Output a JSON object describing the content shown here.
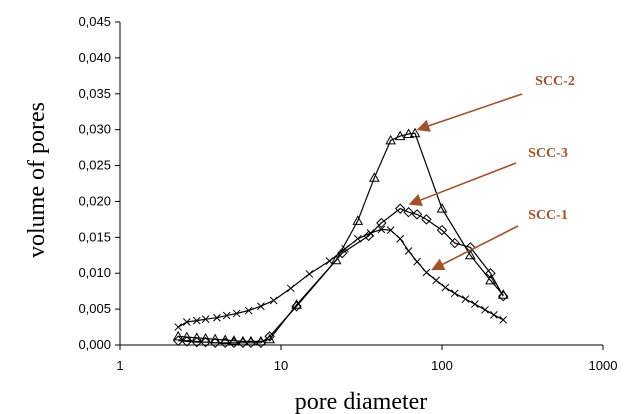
{
  "chart_data": {
    "type": "line",
    "title": "",
    "xlabel": "pore diameter",
    "ylabel": "volume of pores",
    "xscale": "log",
    "xlim": [
      1,
      1000
    ],
    "ylim": [
      0,
      0.045
    ],
    "grid": false,
    "x_tick_labels": [
      "1",
      "10",
      "100",
      "1000"
    ],
    "x_ticks": [
      1,
      10,
      100,
      1000
    ],
    "y_tick_labels": [
      "0,000",
      "0,005",
      "0,010",
      "0,015",
      "0,020",
      "0,025",
      "0,030",
      "0,035",
      "0,040",
      "0,045"
    ],
    "y_ticks": [
      0,
      0.005,
      0.01,
      0.015,
      0.02,
      0.025,
      0.03,
      0.035,
      0.04,
      0.045
    ],
    "series": [
      {
        "name": "SCC-1",
        "marker": "x",
        "x": [
          2.3,
          2.6,
          3.0,
          3.4,
          4.0,
          4.6,
          5.3,
          6.3,
          7.5,
          9.0,
          11.5,
          15,
          20,
          25,
          30,
          36,
          42,
          48,
          55,
          62,
          70,
          80,
          92,
          105,
          120,
          140,
          160,
          185,
          210,
          240
        ],
        "y": [
          0.0025,
          0.0032,
          0.0034,
          0.0036,
          0.0038,
          0.0041,
          0.0044,
          0.0048,
          0.0054,
          0.0062,
          0.0079,
          0.0099,
          0.0117,
          0.0134,
          0.0148,
          0.0156,
          0.0161,
          0.016,
          0.0148,
          0.0131,
          0.0116,
          0.0101,
          0.009,
          0.008,
          0.0072,
          0.0064,
          0.0057,
          0.0049,
          0.0042,
          0.0035
        ]
      },
      {
        "name": "SCC-2",
        "marker": "triangle",
        "x": [
          2.3,
          2.6,
          3.0,
          3.4,
          3.9,
          4.5,
          5.1,
          5.8,
          6.5,
          7.5,
          8.5,
          12.5,
          22,
          30,
          38,
          48,
          55,
          62,
          68,
          100,
          150,
          200,
          240
        ],
        "y": [
          0.0012,
          0.0011,
          0.001,
          0.0009,
          0.0008,
          0.0007,
          0.0006,
          0.0005,
          0.0005,
          0.0005,
          0.0008,
          0.0056,
          0.0118,
          0.0173,
          0.0233,
          0.0285,
          0.0291,
          0.0294,
          0.0295,
          0.019,
          0.0125,
          0.009,
          0.007
        ]
      },
      {
        "name": "SCC-3",
        "marker": "diamond",
        "x": [
          2.3,
          2.6,
          3.0,
          3.4,
          3.9,
          4.5,
          5.1,
          5.8,
          6.5,
          7.5,
          8.5,
          12.5,
          24,
          35,
          42,
          55,
          62,
          70,
          80,
          100,
          120,
          150,
          200,
          240
        ],
        "y": [
          0.0006,
          0.0005,
          0.0004,
          0.0004,
          0.0003,
          0.0003,
          0.0003,
          0.0003,
          0.0003,
          0.0003,
          0.0012,
          0.0054,
          0.0128,
          0.0152,
          0.017,
          0.019,
          0.0185,
          0.0182,
          0.0175,
          0.016,
          0.0142,
          0.0136,
          0.01,
          0.0068
        ]
      }
    ],
    "annotations": [
      {
        "text": "SCC-2",
        "points_to": "SCC-2"
      },
      {
        "text": "SCC-3",
        "points_to": "SCC-3"
      },
      {
        "text": "SCC-1",
        "points_to": "SCC-1"
      }
    ],
    "colors": {
      "series": "#000000",
      "annotation": "#a0522d"
    }
  }
}
